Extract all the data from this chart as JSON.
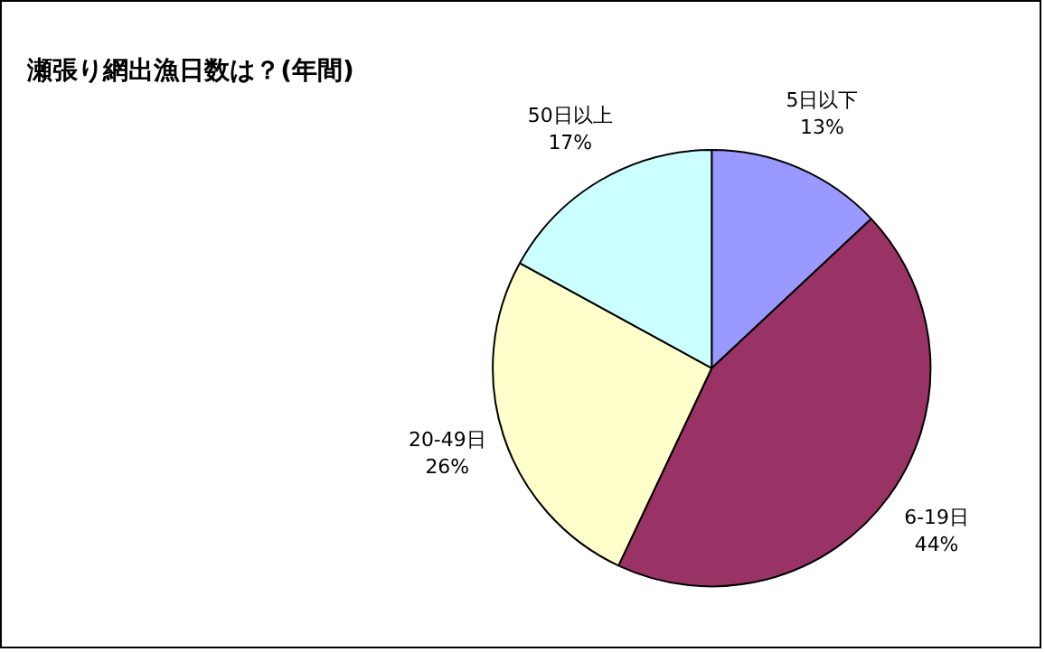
{
  "chart_data": {
    "type": "pie",
    "title": "瀬張り網出漁日数は？(年間)",
    "categories": [
      "5日以下",
      "6-19日",
      "20-49日",
      "50日以上"
    ],
    "values": [
      13,
      44,
      26,
      17
    ],
    "colors": [
      "#9999ff",
      "#993366",
      "#ffffcc",
      "#ccffff"
    ],
    "value_labels": [
      "13%",
      "44%",
      "26%",
      "17%"
    ],
    "legend": false
  }
}
